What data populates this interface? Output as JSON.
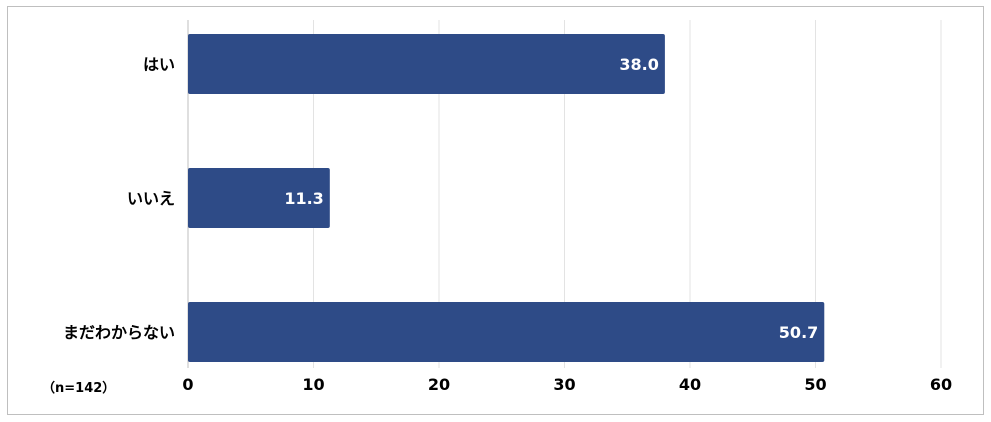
{
  "chart_data": {
    "type": "bar",
    "orientation": "horizontal",
    "categories": [
      "はい",
      "いいえ",
      "まだわからない"
    ],
    "values": [
      38.0,
      11.3,
      50.7
    ],
    "value_labels": [
      "38.0",
      "11.3",
      "50.7"
    ],
    "xlim": [
      0,
      60
    ],
    "ticks": [
      0,
      10,
      20,
      30,
      40,
      50,
      60
    ],
    "tick_labels": [
      "0",
      "10",
      "20",
      "30",
      "40",
      "50",
      "60"
    ],
    "grid": true,
    "legend": "none",
    "bar_color": "#2e4b87",
    "sample_note": "（n=142）"
  }
}
